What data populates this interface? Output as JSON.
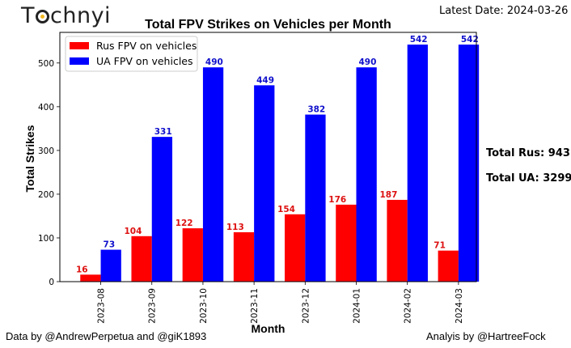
{
  "header": {
    "logo_text_left": "T",
    "logo_text_right": "chnyi",
    "latest_date": "Latest Date: 2024-03-26"
  },
  "side_totals": {
    "rus": "Total Rus: 943",
    "ua": "Total UA: 3299"
  },
  "footer": {
    "data_credit": "Data by @AndrewPerpetua and @giK1893",
    "analysis_credit": "Analyis by @HartreeFock"
  },
  "chart_data": {
    "type": "bar",
    "title": "Total FPV Strikes on Vehicles per Month",
    "xlabel": "Month",
    "ylabel": "Total Strikes",
    "categories": [
      "2023-08",
      "2023-09",
      "2023-10",
      "2023-11",
      "2023-12",
      "2024-01",
      "2024-02",
      "2024-03"
    ],
    "series": [
      {
        "name": "Rus FPV on vehicles",
        "color": "#ff0000",
        "label_color": "#dd1111",
        "values": [
          16,
          104,
          122,
          113,
          154,
          176,
          187,
          71
        ]
      },
      {
        "name": "UA FPV on vehicles",
        "color": "#0000ff",
        "label_color": "#1111cc",
        "values": [
          73,
          331,
          490,
          449,
          382,
          490,
          542,
          542
        ]
      }
    ],
    "ylim": [
      0,
      570
    ],
    "yticks": [
      0,
      100,
      200,
      300,
      400,
      500
    ],
    "grid": false,
    "legend_position": "top-left"
  }
}
